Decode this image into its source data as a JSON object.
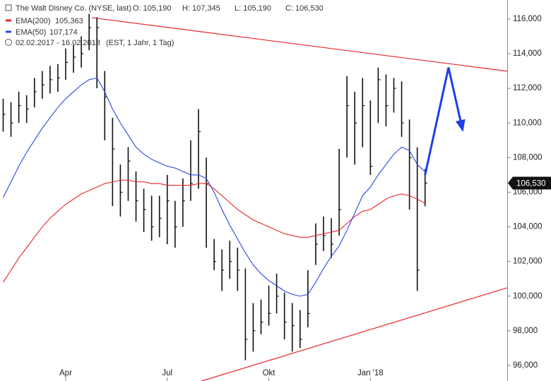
{
  "chart_data": {
    "type": "ohlc",
    "info": {
      "title": "The Walt Disney Co. (NYSE, last)",
      "ohlc": [
        "O: 105,190",
        "H: 107,345",
        "L: 105,190",
        "C: 106,530"
      ],
      "period": "02.02.2017 - 16.02.2018",
      "settings": "(EST, 1 Jahr, 1 Tag)"
    },
    "categories": [
      null,
      null,
      null,
      null,
      null,
      null,
      null,
      null,
      "Apr",
      null,
      null,
      null,
      null,
      null,
      null,
      null,
      null,
      null,
      null,
      null,
      null,
      "Jul",
      null,
      null,
      null,
      null,
      null,
      null,
      null,
      null,
      null,
      null,
      null,
      null,
      "Okt",
      null,
      null,
      null,
      null,
      null,
      null,
      null,
      null,
      null,
      null,
      null,
      null,
      "Jan '18",
      null,
      null,
      null,
      null,
      null,
      null,
      null
    ],
    "high": [
      111.4,
      111.2,
      111.8,
      111.6,
      112.6,
      113.0,
      113.3,
      113.4,
      114.3,
      114.5,
      115.0,
      116.3,
      116.1,
      113.0,
      110.3,
      107.6,
      108.6,
      107.2,
      106.2,
      105.8,
      105.8,
      107.0,
      105.5,
      106.8,
      109.0,
      110.8,
      108.0,
      103.3,
      102.7,
      103.2,
      102.8,
      101.6,
      99.6,
      99.8,
      100.6,
      101.3,
      100.2,
      99.6,
      99.2,
      101.5,
      104.2,
      104.6,
      104.5,
      108.5,
      112.7,
      111.8,
      112.6,
      111.3,
      113.2,
      112.8,
      112.6,
      112.4,
      110.2,
      108.6,
      107.345
    ],
    "low": [
      109.5,
      109.2,
      110.0,
      110.0,
      110.9,
      111.4,
      111.7,
      111.8,
      112.5,
      112.9,
      113.2,
      114.2,
      112.0,
      109.0,
      105.2,
      104.6,
      105.5,
      104.3,
      103.7,
      103.2,
      103.4,
      103.0,
      102.8,
      104.0,
      105.5,
      106.2,
      102.8,
      101.5,
      100.3,
      101.0,
      100.3,
      96.3,
      96.8,
      97.8,
      98.3,
      99.0,
      97.5,
      96.8,
      97.0,
      98.2,
      101.8,
      102.6,
      102.2,
      103.5,
      108.0,
      107.6,
      108.6,
      107.0,
      110.0,
      109.8,
      110.6,
      109.2,
      105.0,
      100.3,
      105.19
    ],
    "close": [
      110.5,
      110.0,
      111.0,
      110.8,
      111.8,
      112.2,
      112.5,
      112.6,
      113.5,
      113.8,
      114.0,
      115.5,
      115.5,
      111.5,
      108.5,
      106.0,
      107.8,
      105.5,
      105.0,
      104.0,
      104.5,
      105.5,
      104.0,
      105.5,
      106.5,
      109.5,
      106.5,
      102.0,
      101.5,
      102.0,
      101.5,
      97.5,
      98.0,
      98.5,
      99.0,
      100.0,
      98.5,
      98.3,
      97.5,
      99.0,
      103.0,
      103.5,
      103.0,
      105.0,
      111.0,
      110.0,
      111.0,
      107.5,
      112.5,
      111.0,
      112.0,
      110.0,
      108.0,
      101.5,
      106.53
    ],
    "price_color": "#111111",
    "last_label": "106,530",
    "series": [
      {
        "name": "EMA(200)",
        "color": "#e8262a",
        "legend_value": "105,363",
        "values": [
          100.8,
          101.5,
          102.2,
          102.8,
          103.4,
          104.0,
          104.5,
          104.9,
          105.3,
          105.6,
          105.9,
          106.1,
          106.3,
          106.5,
          106.6,
          106.7,
          106.7,
          106.6,
          106.6,
          106.5,
          106.5,
          106.4,
          106.4,
          106.4,
          106.4,
          106.5,
          106.5,
          106.2,
          105.8,
          105.4,
          105.0,
          104.7,
          104.4,
          104.2,
          104.0,
          103.8,
          103.6,
          103.5,
          103.4,
          103.4,
          103.5,
          103.6,
          103.7,
          103.8,
          104.2,
          104.6,
          104.9,
          105.0,
          105.3,
          105.6,
          105.8,
          105.9,
          105.8,
          105.6,
          105.363
        ]
      },
      {
        "name": "EMA(50)",
        "color": "#2a44e0",
        "legend_value": "107,174",
        "values": [
          105.7,
          106.6,
          107.5,
          108.3,
          109.0,
          109.7,
          110.3,
          110.9,
          111.4,
          111.8,
          112.2,
          112.5,
          112.6,
          111.8,
          110.8,
          110.0,
          109.3,
          108.6,
          108.2,
          107.9,
          107.7,
          107.5,
          107.4,
          107.2,
          107.0,
          107.0,
          106.8,
          106.0,
          105.0,
          104.1,
          103.3,
          102.5,
          101.8,
          101.3,
          100.9,
          100.6,
          100.3,
          100.1,
          100.0,
          100.1,
          100.8,
          101.6,
          102.3,
          102.9,
          103.8,
          104.8,
          105.8,
          106.3,
          107.0,
          107.6,
          108.2,
          108.6,
          108.4,
          107.6,
          107.174
        ]
      }
    ],
    "trendlines": [
      {
        "color": "#e8262a",
        "x": [
          11.35,
          64.5
        ],
        "y": [
          116.08,
          112.99
        ]
      },
      {
        "color": "#e8262a",
        "x": [
          25.4,
          64.5
        ],
        "y": [
          95.1,
          100.48
        ]
      }
    ],
    "projection": {
      "color": "#1f3fe6",
      "x": [
        54,
        57.0,
        58.8
      ],
      "y": [
        107.0,
        113.2,
        109.6
      ]
    },
    "ylim": [
      95.1,
      117.1
    ],
    "yticks": [
      {
        "value": 96,
        "label": "96,000"
      },
      {
        "value": 98,
        "label": "98,000"
      },
      {
        "value": 100,
        "label": "100,000"
      },
      {
        "value": 102,
        "label": "102,000"
      },
      {
        "value": 104,
        "label": "104,000"
      },
      {
        "value": 106,
        "label": "106,000"
      },
      {
        "value": 108,
        "label": "108,000"
      },
      {
        "value": 110,
        "label": "110,000"
      },
      {
        "value": 112,
        "label": "112,000"
      },
      {
        "value": 114,
        "label": "114,000"
      },
      {
        "value": 116,
        "label": "116,000"
      }
    ]
  }
}
